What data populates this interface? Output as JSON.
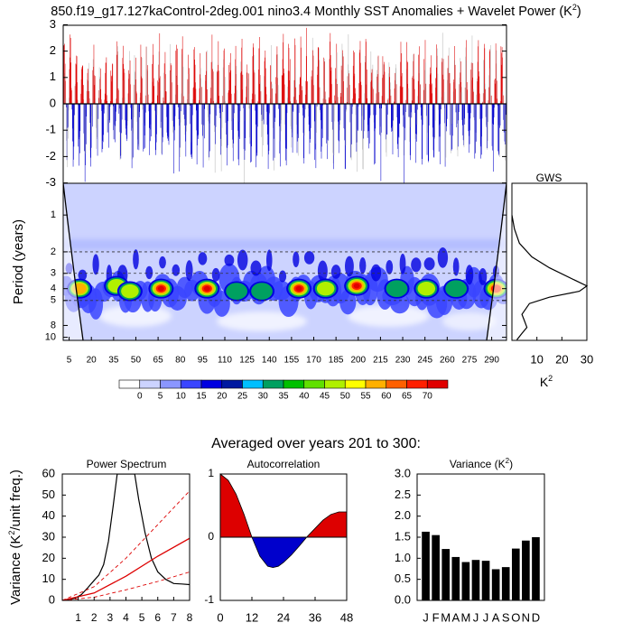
{
  "title": "850.f19_g17.127kaControl-2deg.001 nino3.4 Monthly SST Anomalies + Wavelet Power (K",
  "title_sup": "2",
  "title_end": ")",
  "section_title": "Averaged over years 201 to 300:",
  "colors": {
    "positive": "#dd0000",
    "negative": "#0000cc",
    "background": "#ffffff",
    "axis": "#000000"
  },
  "chart_data": [
    {
      "type": "bar",
      "name": "anomaly-timeseries",
      "ylim": [
        -3,
        3
      ],
      "y_ticks": [
        "3",
        "2",
        "1",
        "0",
        "-1",
        "-2",
        "-3"
      ],
      "x_range_years": [
        1,
        300
      ],
      "positive_color": "#dd0000",
      "negative_color": "#0000cc"
    },
    {
      "type": "heatmap",
      "name": "wavelet-power",
      "ylabel": "Period (years)",
      "y_scale": "log",
      "y_ticks": [
        "1",
        "2",
        "3",
        "4",
        "5",
        "8",
        "10"
      ],
      "x_ticks": [
        "5",
        "20",
        "35",
        "50",
        "65",
        "80",
        "95",
        "110",
        "125",
        "140",
        "155",
        "170",
        "185",
        "200",
        "215",
        "230",
        "245",
        "260",
        "275",
        "290"
      ],
      "dashed_period_lines": [
        2,
        3,
        5
      ],
      "hot_spots": [
        {
          "year": 67,
          "period": 4.0,
          "power": 70
        },
        {
          "year": 98,
          "period": 4.0,
          "power": 70
        },
        {
          "year": 160,
          "period": 4.0,
          "power": 70
        },
        {
          "year": 199,
          "period": 3.8,
          "power": 70
        },
        {
          "year": 293,
          "period": 4.0,
          "power": 65
        },
        {
          "year": 12,
          "period": 4.0,
          "power": 55
        },
        {
          "year": 37,
          "period": 3.8,
          "power": 45
        },
        {
          "year": 46,
          "period": 4.2,
          "power": 50
        },
        {
          "year": 118,
          "period": 4.2,
          "power": 35
        },
        {
          "year": 135,
          "period": 4.2,
          "power": 30
        },
        {
          "year": 178,
          "period": 4.0,
          "power": 45
        },
        {
          "year": 226,
          "period": 4.0,
          "power": 40
        },
        {
          "year": 246,
          "period": 4.0,
          "power": 45
        },
        {
          "year": 266,
          "period": 4.0,
          "power": 40
        }
      ]
    },
    {
      "type": "line",
      "name": "global-wavelet-spectrum",
      "title": "GWS",
      "xlabel": "K",
      "xlabel_sup": "2",
      "xlim": [
        0,
        30
      ],
      "x_ticks": [
        "10",
        "20",
        "30"
      ],
      "points": [
        [
          0,
          1.0
        ],
        [
          1,
          1.3
        ],
        [
          3,
          1.7
        ],
        [
          8,
          2.2
        ],
        [
          15,
          2.7
        ],
        [
          25,
          3.4
        ],
        [
          30,
          3.8
        ],
        [
          27,
          4.2
        ],
        [
          15,
          4.7
        ],
        [
          7,
          5.3
        ],
        [
          4,
          6.5
        ],
        [
          5,
          7.3
        ],
        [
          6,
          8.3
        ],
        [
          4,
          9.3
        ],
        [
          2,
          10.5
        ]
      ]
    },
    {
      "type": "line",
      "name": "power-spectrum",
      "title": "Power Spectrum",
      "ylabel": "Variance (K",
      "ylabel_sup": "2",
      "ylabel_end": "/unit freq.)",
      "xlim": [
        0,
        8
      ],
      "ylim": [
        0,
        60
      ],
      "x_ticks": [
        "1",
        "2",
        "3",
        "4",
        "5",
        "6",
        "7",
        "8"
      ],
      "y_ticks": [
        "60",
        "50",
        "40",
        "30",
        "20",
        "10",
        "0"
      ],
      "series": [
        {
          "values": [
            [
              0.3,
              0.2
            ],
            [
              0.8,
              1.0
            ],
            [
              1.2,
              2.8
            ],
            [
              1.6,
              6.0
            ],
            [
              2.0,
              9.5
            ],
            [
              2.3,
              12.0
            ],
            [
              2.6,
              17.0
            ],
            [
              2.9,
              28.0
            ],
            [
              3.2,
              45.0
            ],
            [
              3.45,
              60.0
            ],
            [
              4.55,
              60.0
            ],
            [
              4.8,
              48.0
            ],
            [
              5.2,
              32.0
            ],
            [
              5.6,
              20.0
            ],
            [
              6.0,
              13.5
            ],
            [
              6.5,
              10.0
            ],
            [
              7.0,
              8.0
            ],
            [
              7.5,
              7.8
            ],
            [
              8.0,
              7.5
            ]
          ]
        },
        {
          "values": [
            [
              0,
              0
            ],
            [
              2,
              3.5
            ],
            [
              4,
              11.5
            ],
            [
              6,
              21.0
            ],
            [
              8,
              29.5
            ]
          ]
        },
        {
          "values": [
            [
              0,
              0
            ],
            [
              2,
              6.5
            ],
            [
              4,
              20.0
            ],
            [
              6,
              36.0
            ],
            [
              8,
              52.0
            ]
          ]
        },
        {
          "values": [
            [
              0,
              0
            ],
            [
              2,
              1.5
            ],
            [
              4,
              5.0
            ],
            [
              6,
              9.0
            ],
            [
              8,
              13.5
            ]
          ]
        }
      ]
    },
    {
      "type": "area",
      "name": "autocorrelation",
      "title": "Autocorrelation",
      "xlim": [
        0,
        48
      ],
      "ylim": [
        -1,
        1
      ],
      "x_ticks": [
        "0",
        "12",
        "24",
        "36",
        "48"
      ],
      "y_ticks": [
        "1",
        "0",
        "-1"
      ],
      "series": [
        {
          "values": [
            [
              0,
              1.0
            ],
            [
              3,
              0.9
            ],
            [
              6,
              0.68
            ],
            [
              9,
              0.36
            ],
            [
              12,
              0.0
            ],
            [
              15,
              -0.3
            ],
            [
              18,
              -0.46
            ],
            [
              20,
              -0.48
            ],
            [
              22,
              -0.46
            ],
            [
              24,
              -0.4
            ],
            [
              27,
              -0.28
            ],
            [
              30,
              -0.14
            ],
            [
              33,
              0.01
            ],
            [
              36,
              0.14
            ],
            [
              39,
              0.27
            ],
            [
              42,
              0.36
            ],
            [
              45,
              0.4
            ],
            [
              48,
              0.4
            ]
          ]
        }
      ]
    },
    {
      "type": "bar",
      "name": "monthly-variance",
      "title": "Variance (K",
      "title_sup": "2",
      "title_end": ")",
      "categories": [
        "J",
        "F",
        "M",
        "A",
        "M",
        "J",
        "J",
        "A",
        "S",
        "O",
        "N",
        "D"
      ],
      "values": [
        1.63,
        1.55,
        1.22,
        1.03,
        0.91,
        0.96,
        0.94,
        0.74,
        0.79,
        1.23,
        1.42,
        1.5
      ],
      "ylim": [
        0,
        3
      ],
      "y_ticks": [
        "3.0",
        "2.5",
        "2.0",
        "1.5",
        "1.0",
        "0.5",
        "0.0"
      ]
    }
  ],
  "colorbar": {
    "labels": [
      "0",
      "5",
      "10",
      "15",
      "20",
      "25",
      "30",
      "35",
      "40",
      "45",
      "50",
      "55",
      "60",
      "65",
      "70"
    ],
    "colors": [
      "#ffffff",
      "#ccd3ff",
      "#8a96ff",
      "#3a45ff",
      "#0000e0",
      "#0019a0",
      "#00bfff",
      "#00a060",
      "#00c000",
      "#60e000",
      "#b0f000",
      "#ffff00",
      "#ffb000",
      "#ff6000",
      "#ff2000",
      "#e00000"
    ]
  }
}
